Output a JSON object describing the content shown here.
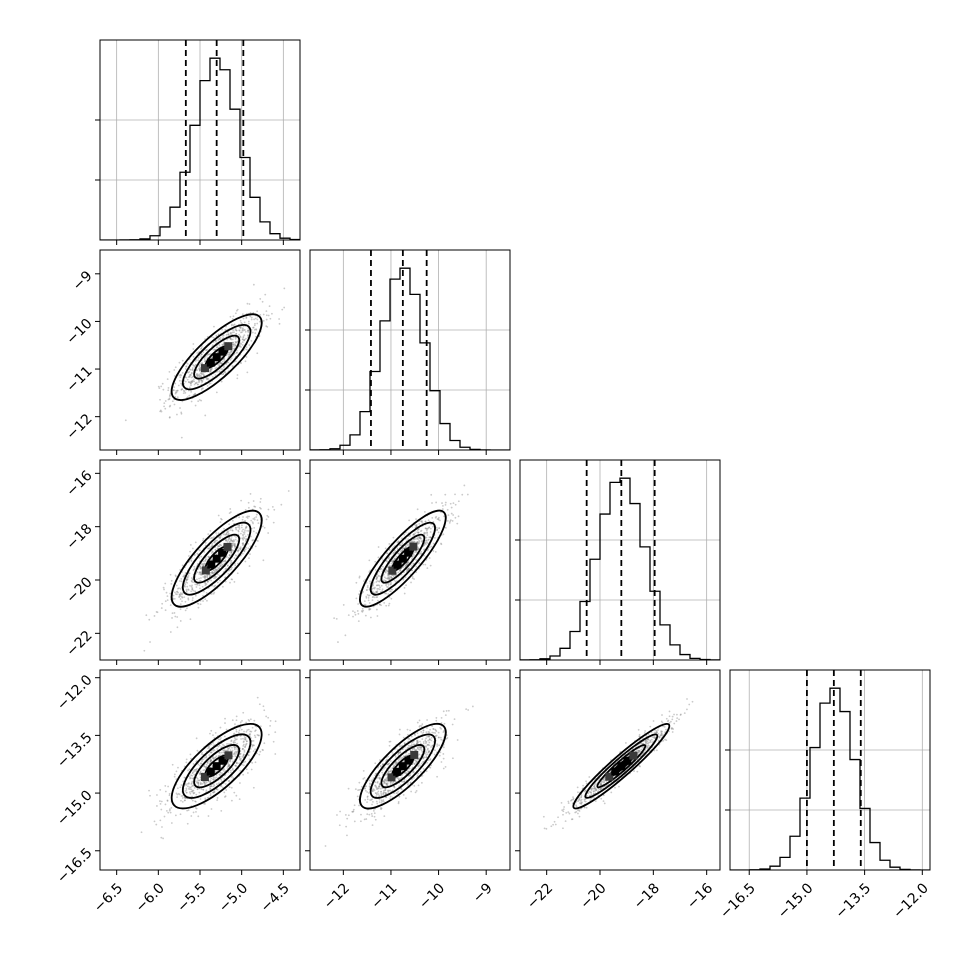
{
  "chart_data": {
    "type": "corner",
    "grid": true,
    "parameters": [
      {
        "mean": -5.3,
        "sd": 0.27,
        "range": [
          -6.7,
          -4.3
        ],
        "ticks": [
          -6.5,
          -6.0,
          -5.5,
          -5.0,
          -4.5
        ],
        "tick_labels": [
          "−6.5",
          "−6.0",
          "−5.5",
          "−5.0",
          "−4.5"
        ],
        "quantiles": [
          -5.67,
          -5.3,
          -4.98
        ]
      },
      {
        "mean": -10.75,
        "sd": 0.45,
        "range": [
          -12.7,
          -8.5
        ],
        "ticks": [
          -12,
          -11,
          -10,
          -9
        ],
        "tick_labels": [
          "−12",
          "−11",
          "−10",
          "−9"
        ],
        "quantiles": [
          -11.42,
          -10.75,
          -10.25
        ]
      },
      {
        "mean": -19.2,
        "sd": 0.9,
        "range": [
          -23,
          -15.5
        ],
        "ticks": [
          -22,
          -20,
          -18,
          -16
        ],
        "tick_labels": [
          "−22",
          "−20",
          "−18",
          "−16"
        ],
        "quantiles": [
          -20.5,
          -19.2,
          -17.95
        ]
      },
      {
        "mean": -14.3,
        "sd": 0.55,
        "range": [
          -17,
          -11.8
        ],
        "ticks": [
          -16.5,
          -15.0,
          -13.5,
          -12.0
        ],
        "tick_labels": [
          "−16.5",
          "−15.0",
          "−13.5",
          "−12.0"
        ],
        "quantiles": [
          -15.0,
          -14.3,
          -13.6
        ]
      }
    ],
    "correlation": [
      [
        1.0,
        0.8,
        0.8,
        0.75
      ],
      [
        0.8,
        1.0,
        0.85,
        0.8
      ],
      [
        0.8,
        0.85,
        1.0,
        0.95
      ],
      [
        0.75,
        0.8,
        0.95,
        1.0
      ]
    ],
    "histogram_bins": 20,
    "contour_levels_sigma": [
      0.5,
      1.0,
      1.5,
      2.0
    ]
  }
}
